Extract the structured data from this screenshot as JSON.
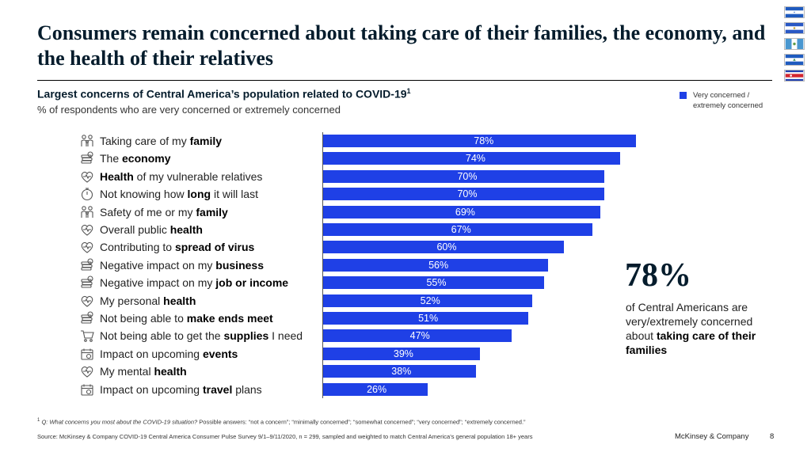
{
  "title": "Consumers remain concerned about taking care of their families, the economy, and the health of their relatives",
  "subtitle": "Largest concerns of Central America’s population related to COVID-19",
  "subtitle_footnote_ref": "1",
  "subtext": "% of respondents who are very concerned or extremely concerned",
  "legend": {
    "label": "Very concerned / extremely concerned",
    "color": "#1f40e6"
  },
  "flags": [
    "honduras",
    "el-salvador",
    "guatemala",
    "nicaragua",
    "costa-rica"
  ],
  "callout": {
    "value": "78%",
    "text": "of Central Americans are very/extremely concerned about ",
    "bold": "taking care of their families"
  },
  "footnote": {
    "number": "1",
    "question": "Q: What concerns you most about the COVID-19 situation?",
    "answers": " Possible answers: “not a concern”; “minimally concerned”; “somewhat concerned”; “very concerned”; “extremely concerned.”"
  },
  "source": "Source: McKinsey & Company COVID-19 Central America Consumer Pulse Survey 9/1–9/11/2020, n = 299, sampled and weighted to match Central America’s general population 18+ years",
  "brand": "McKinsey & Company",
  "page_number": "8",
  "chart_data": {
    "type": "bar",
    "orientation": "horizontal",
    "title": "Largest concerns of Central America’s population related to COVID-19",
    "unit": "%",
    "series": [
      {
        "name": "Very concerned / extremely concerned",
        "color": "#1f40e6"
      }
    ],
    "categories": [
      {
        "icon": "family-icon",
        "parts": [
          [
            "Taking care of my ",
            false
          ],
          [
            "family",
            true
          ]
        ]
      },
      {
        "icon": "money-icon",
        "parts": [
          [
            "The ",
            false
          ],
          [
            "economy",
            true
          ]
        ]
      },
      {
        "icon": "heart-icon",
        "parts": [
          [
            "Health",
            true
          ],
          [
            " of my vulnerable relatives",
            false
          ]
        ]
      },
      {
        "icon": "stopwatch-icon",
        "parts": [
          [
            "Not knowing how ",
            false
          ],
          [
            "long",
            true
          ],
          [
            " it will last",
            false
          ]
        ]
      },
      {
        "icon": "family-icon",
        "parts": [
          [
            "Safety of me or my ",
            false
          ],
          [
            "family",
            true
          ]
        ]
      },
      {
        "icon": "heart-icon",
        "parts": [
          [
            "Overall public ",
            false
          ],
          [
            "health",
            true
          ]
        ]
      },
      {
        "icon": "heart-icon",
        "parts": [
          [
            "Contributing to ",
            false
          ],
          [
            "spread of virus",
            true
          ]
        ]
      },
      {
        "icon": "money-icon",
        "parts": [
          [
            "Negative impact on my ",
            false
          ],
          [
            "business",
            true
          ]
        ]
      },
      {
        "icon": "money-icon",
        "parts": [
          [
            "Negative impact on my ",
            false
          ],
          [
            "job or income",
            true
          ]
        ]
      },
      {
        "icon": "heart-icon",
        "parts": [
          [
            "My personal ",
            false
          ],
          [
            "health",
            true
          ]
        ]
      },
      {
        "icon": "money-icon",
        "parts": [
          [
            "Not being able to ",
            false
          ],
          [
            "make ends meet",
            true
          ]
        ]
      },
      {
        "icon": "cart-icon",
        "parts": [
          [
            "Not being able to get the ",
            false
          ],
          [
            "supplies",
            true
          ],
          [
            " I need",
            false
          ]
        ]
      },
      {
        "icon": "calendar-icon",
        "parts": [
          [
            "Impact on upcoming ",
            false
          ],
          [
            "events",
            true
          ]
        ]
      },
      {
        "icon": "heart-icon",
        "parts": [
          [
            "My mental ",
            false
          ],
          [
            "health",
            true
          ]
        ]
      },
      {
        "icon": "calendar-icon",
        "parts": [
          [
            "Impact on upcoming ",
            false
          ],
          [
            "travel",
            true
          ],
          [
            " plans",
            false
          ]
        ]
      }
    ],
    "values": [
      78,
      74,
      70,
      70,
      69,
      67,
      60,
      56,
      55,
      52,
      51,
      47,
      39,
      38,
      26
    ],
    "value_labels": [
      "78%",
      "74%",
      "70%",
      "70%",
      "69%",
      "67%",
      "60%",
      "56%",
      "55%",
      "52%",
      "51%",
      "47%",
      "39%",
      "38%",
      "26%"
    ]
  }
}
